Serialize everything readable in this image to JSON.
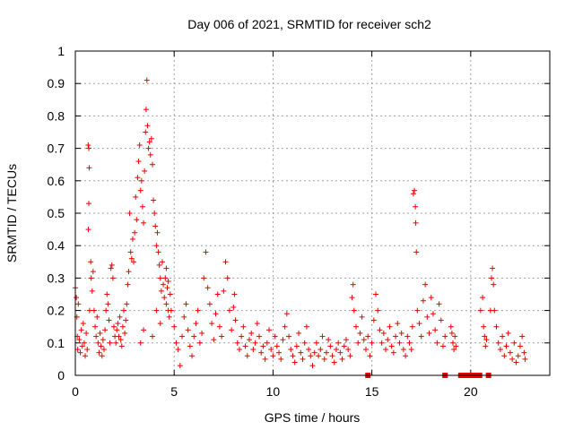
{
  "chart_data": {
    "type": "scatter",
    "title": "Day 006 of 2021, SRMTID for receiver sch2",
    "xlabel": "GPS time / hours",
    "ylabel": "SRMTID / TECUs",
    "xlim": [
      0,
      24
    ],
    "ylim": [
      0,
      1
    ],
    "xticks": [
      0,
      5,
      10,
      15,
      20
    ],
    "xtick_labels": [
      "0",
      "5",
      "10",
      "15",
      "20"
    ],
    "yticks": [
      0,
      0.1,
      0.2,
      0.3,
      0.4,
      0.5,
      0.6,
      0.7,
      0.8,
      0.9,
      1
    ],
    "ytick_labels": [
      "0",
      "0.1",
      "0.2",
      "0.3",
      "0.4",
      "0.5",
      "0.6",
      "0.7",
      "0.8",
      "0.9",
      "1"
    ],
    "grid": true,
    "marker": "+",
    "color": "#ee0000",
    "series": [
      {
        "name": "SRMTID",
        "points": [
          [
            0.0,
            0.27
          ],
          [
            0.05,
            0.24
          ],
          [
            0.08,
            0.18
          ],
          [
            0.1,
            0.12
          ],
          [
            0.12,
            0.08
          ],
          [
            0.15,
            0.22
          ],
          [
            0.2,
            0.11
          ],
          [
            0.25,
            0.07
          ],
          [
            0.3,
            0.14
          ],
          [
            0.35,
            0.09
          ],
          [
            0.4,
            0.16
          ],
          [
            0.45,
            0.1
          ],
          [
            0.5,
            0.06
          ],
          [
            0.55,
            0.13
          ],
          [
            0.6,
            0.08
          ],
          [
            0.65,
            0.71
          ],
          [
            0.68,
            0.7
          ],
          [
            0.7,
            0.64
          ],
          [
            0.68,
            0.53
          ],
          [
            0.66,
            0.45
          ],
          [
            0.72,
            0.2
          ],
          [
            0.78,
            0.35
          ],
          [
            0.8,
            0.3
          ],
          [
            0.85,
            0.26
          ],
          [
            0.9,
            0.32
          ],
          [
            0.95,
            0.2
          ],
          [
            1.0,
            0.15
          ],
          [
            1.05,
            0.12
          ],
          [
            1.1,
            0.18
          ],
          [
            1.15,
            0.1
          ],
          [
            1.2,
            0.07
          ],
          [
            1.25,
            0.13
          ],
          [
            1.3,
            0.09
          ],
          [
            1.35,
            0.06
          ],
          [
            1.4,
            0.11
          ],
          [
            1.45,
            0.08
          ],
          [
            1.5,
            0.14
          ],
          [
            1.55,
            0.2
          ],
          [
            1.6,
            0.25
          ],
          [
            1.65,
            0.22
          ],
          [
            1.7,
            0.17
          ],
          [
            1.75,
            0.1
          ],
          [
            1.8,
            0.33
          ],
          [
            1.85,
            0.34
          ],
          [
            1.9,
            0.3
          ],
          [
            1.95,
            0.15
          ],
          [
            2.0,
            0.12
          ],
          [
            2.05,
            0.1
          ],
          [
            2.1,
            0.14
          ],
          [
            2.15,
            0.16
          ],
          [
            2.2,
            0.12
          ],
          [
            2.25,
            0.18
          ],
          [
            2.3,
            0.11
          ],
          [
            2.35,
            0.09
          ],
          [
            2.4,
            0.15
          ],
          [
            2.45,
            0.2
          ],
          [
            2.5,
            0.13
          ],
          [
            2.55,
            0.17
          ],
          [
            2.6,
            0.22
          ],
          [
            2.65,
            0.28
          ],
          [
            2.7,
            0.32
          ],
          [
            2.75,
            0.5
          ],
          [
            2.8,
            0.38
          ],
          [
            2.85,
            0.36
          ],
          [
            2.9,
            0.42
          ],
          [
            2.95,
            0.35
          ],
          [
            3.0,
            0.44
          ],
          [
            3.05,
            0.55
          ],
          [
            3.1,
            0.48
          ],
          [
            3.15,
            0.61
          ],
          [
            3.2,
            0.66
          ],
          [
            3.25,
            0.71
          ],
          [
            3.3,
            0.57
          ],
          [
            3.35,
            0.6
          ],
          [
            3.4,
            0.52
          ],
          [
            3.45,
            0.47
          ],
          [
            3.5,
            0.63
          ],
          [
            3.55,
            0.75
          ],
          [
            3.58,
            0.82
          ],
          [
            3.62,
            0.91
          ],
          [
            3.65,
            0.77
          ],
          [
            3.7,
            0.7
          ],
          [
            3.75,
            0.72
          ],
          [
            3.8,
            0.68
          ],
          [
            3.85,
            0.73
          ],
          [
            3.9,
            0.65
          ],
          [
            3.95,
            0.54
          ],
          [
            4.0,
            0.5
          ],
          [
            4.05,
            0.46
          ],
          [
            4.1,
            0.4
          ],
          [
            4.15,
            0.44
          ],
          [
            4.2,
            0.38
          ],
          [
            4.25,
            0.34
          ],
          [
            4.3,
            0.3
          ],
          [
            4.35,
            0.26
          ],
          [
            4.4,
            0.35
          ],
          [
            4.45,
            0.28
          ],
          [
            4.5,
            0.24
          ],
          [
            4.55,
            0.3
          ],
          [
            4.6,
            0.22
          ],
          [
            4.65,
            0.27
          ],
          [
            4.7,
            0.2
          ],
          [
            4.75,
            0.18
          ],
          [
            4.8,
            0.25
          ],
          [
            4.85,
            0.2
          ],
          [
            3.3,
            0.1
          ],
          [
            3.45,
            0.14
          ],
          [
            3.9,
            0.12
          ],
          [
            4.1,
            0.2
          ],
          [
            4.3,
            0.16
          ],
          [
            4.6,
            0.33
          ],
          [
            4.7,
            0.29
          ],
          [
            5.0,
            0.15
          ],
          [
            5.1,
            0.1
          ],
          [
            5.2,
            0.08
          ],
          [
            5.3,
            0.03
          ],
          [
            5.4,
            0.12
          ],
          [
            5.5,
            0.18
          ],
          [
            5.6,
            0.22
          ],
          [
            5.7,
            0.14
          ],
          [
            5.8,
            0.09
          ],
          [
            5.9,
            0.06
          ],
          [
            6.0,
            0.12
          ],
          [
            6.1,
            0.16
          ],
          [
            6.2,
            0.2
          ],
          [
            6.3,
            0.1
          ],
          [
            6.4,
            0.13
          ],
          [
            6.5,
            0.3
          ],
          [
            6.6,
            0.38
          ],
          [
            6.7,
            0.27
          ],
          [
            6.8,
            0.22
          ],
          [
            6.9,
            0.16
          ],
          [
            7.0,
            0.11
          ],
          [
            7.1,
            0.19
          ],
          [
            7.2,
            0.25
          ],
          [
            7.3,
            0.15
          ],
          [
            7.4,
            0.12
          ],
          [
            7.5,
            0.26
          ],
          [
            7.6,
            0.35
          ],
          [
            7.7,
            0.3
          ],
          [
            7.8,
            0.2
          ],
          [
            7.9,
            0.14
          ],
          [
            8.0,
            0.21
          ],
          [
            8.05,
            0.25
          ],
          [
            8.1,
            0.17
          ],
          [
            8.2,
            0.1
          ],
          [
            8.3,
            0.08
          ],
          [
            8.4,
            0.12
          ],
          [
            8.5,
            0.15
          ],
          [
            8.6,
            0.09
          ],
          [
            8.7,
            0.06
          ],
          [
            8.8,
            0.11
          ],
          [
            8.9,
            0.13
          ],
          [
            9.0,
            0.08
          ],
          [
            9.1,
            0.1
          ],
          [
            9.2,
            0.16
          ],
          [
            9.3,
            0.12
          ],
          [
            9.4,
            0.07
          ],
          [
            9.5,
            0.09
          ],
          [
            9.6,
            0.05
          ],
          [
            9.7,
            0.1
          ],
          [
            9.8,
            0.14
          ],
          [
            9.9,
            0.08
          ],
          [
            10.0,
            0.06
          ],
          [
            10.1,
            0.12
          ],
          [
            10.2,
            0.09
          ],
          [
            10.3,
            0.07
          ],
          [
            10.4,
            0.05
          ],
          [
            10.5,
            0.11
          ],
          [
            10.6,
            0.15
          ],
          [
            10.7,
            0.19
          ],
          [
            10.8,
            0.12
          ],
          [
            10.9,
            0.08
          ],
          [
            11.0,
            0.06
          ],
          [
            11.1,
            0.04
          ],
          [
            11.2,
            0.09
          ],
          [
            11.3,
            0.13
          ],
          [
            11.4,
            0.07
          ],
          [
            11.5,
            0.05
          ],
          [
            11.6,
            0.1
          ],
          [
            11.7,
            0.15
          ],
          [
            11.8,
            0.08
          ],
          [
            11.9,
            0.06
          ],
          [
            12.0,
            0.03
          ],
          [
            12.1,
            0.07
          ],
          [
            12.2,
            0.1
          ],
          [
            12.3,
            0.06
          ],
          [
            12.4,
            0.08
          ],
          [
            12.5,
            0.12
          ],
          [
            12.6,
            0.05
          ],
          [
            12.7,
            0.07
          ],
          [
            12.8,
            0.11
          ],
          [
            12.9,
            0.09
          ],
          [
            13.0,
            0.06
          ],
          [
            13.1,
            0.04
          ],
          [
            13.2,
            0.08
          ],
          [
            13.3,
            0.1
          ],
          [
            13.4,
            0.07
          ],
          [
            13.5,
            0.05
          ],
          [
            13.6,
            0.09
          ],
          [
            13.7,
            0.11
          ],
          [
            13.8,
            0.08
          ],
          [
            13.9,
            0.06
          ],
          [
            14.0,
            0.24
          ],
          [
            14.05,
            0.28
          ],
          [
            14.1,
            0.2
          ],
          [
            14.2,
            0.15
          ],
          [
            14.3,
            0.1
          ],
          [
            14.4,
            0.13
          ],
          [
            14.5,
            0.18
          ],
          [
            14.6,
            0.11
          ],
          [
            14.7,
            0.08
          ],
          [
            14.8,
            0.12
          ],
          [
            14.9,
            0.06
          ],
          [
            15.0,
            0.1
          ],
          [
            15.1,
            0.17
          ],
          [
            15.2,
            0.25
          ],
          [
            15.3,
            0.2
          ],
          [
            15.4,
            0.14
          ],
          [
            15.5,
            0.1
          ],
          [
            15.6,
            0.13
          ],
          [
            15.7,
            0.08
          ],
          [
            15.8,
            0.11
          ],
          [
            15.9,
            0.15
          ],
          [
            16.0,
            0.09
          ],
          [
            16.1,
            0.07
          ],
          [
            16.2,
            0.12
          ],
          [
            16.3,
            0.16
          ],
          [
            16.4,
            0.1
          ],
          [
            16.5,
            0.13
          ],
          [
            16.6,
            0.08
          ],
          [
            16.7,
            0.06
          ],
          [
            16.8,
            0.12
          ],
          [
            16.9,
            0.1
          ],
          [
            17.0,
            0.08
          ],
          [
            17.05,
            0.15
          ],
          [
            17.1,
            0.56
          ],
          [
            17.15,
            0.57
          ],
          [
            17.2,
            0.52
          ],
          [
            17.22,
            0.47
          ],
          [
            17.25,
            0.38
          ],
          [
            17.3,
            0.2
          ],
          [
            17.4,
            0.16
          ],
          [
            17.5,
            0.12
          ],
          [
            17.6,
            0.23
          ],
          [
            17.7,
            0.28
          ],
          [
            17.8,
            0.18
          ],
          [
            17.9,
            0.13
          ],
          [
            18.0,
            0.24
          ],
          [
            18.1,
            0.19
          ],
          [
            18.2,
            0.14
          ],
          [
            18.3,
            0.1
          ],
          [
            18.4,
            0.22
          ],
          [
            18.5,
            0.17
          ],
          [
            18.6,
            0.09
          ],
          [
            18.7,
            0.12
          ],
          [
            19.0,
            0.15
          ],
          [
            19.05,
            0.13
          ],
          [
            19.1,
            0.1
          ],
          [
            19.15,
            0.08
          ],
          [
            19.2,
            0.12
          ],
          [
            19.25,
            0.09
          ],
          [
            20.5,
            0.2
          ],
          [
            20.6,
            0.24
          ],
          [
            20.65,
            0.15
          ],
          [
            20.7,
            0.12
          ],
          [
            20.75,
            0.09
          ],
          [
            20.8,
            0.11
          ],
          [
            21.0,
            0.2
          ],
          [
            21.05,
            0.3
          ],
          [
            21.1,
            0.33
          ],
          [
            21.15,
            0.28
          ],
          [
            21.2,
            0.2
          ],
          [
            21.3,
            0.15
          ],
          [
            21.4,
            0.1
          ],
          [
            21.5,
            0.08
          ],
          [
            21.6,
            0.12
          ],
          [
            21.7,
            0.06
          ],
          [
            21.8,
            0.09
          ],
          [
            21.9,
            0.13
          ],
          [
            22.0,
            0.07
          ],
          [
            22.1,
            0.05
          ],
          [
            22.2,
            0.1
          ],
          [
            22.3,
            0.04
          ],
          [
            22.4,
            0.06
          ],
          [
            22.5,
            0.09
          ],
          [
            22.6,
            0.12
          ],
          [
            22.7,
            0.07
          ],
          [
            22.75,
            0.05
          ]
        ]
      }
    ],
    "data_gaps_x": [
      14.8,
      18.7,
      19.5,
      19.75,
      20.0,
      20.25,
      20.45,
      20.9
    ]
  }
}
